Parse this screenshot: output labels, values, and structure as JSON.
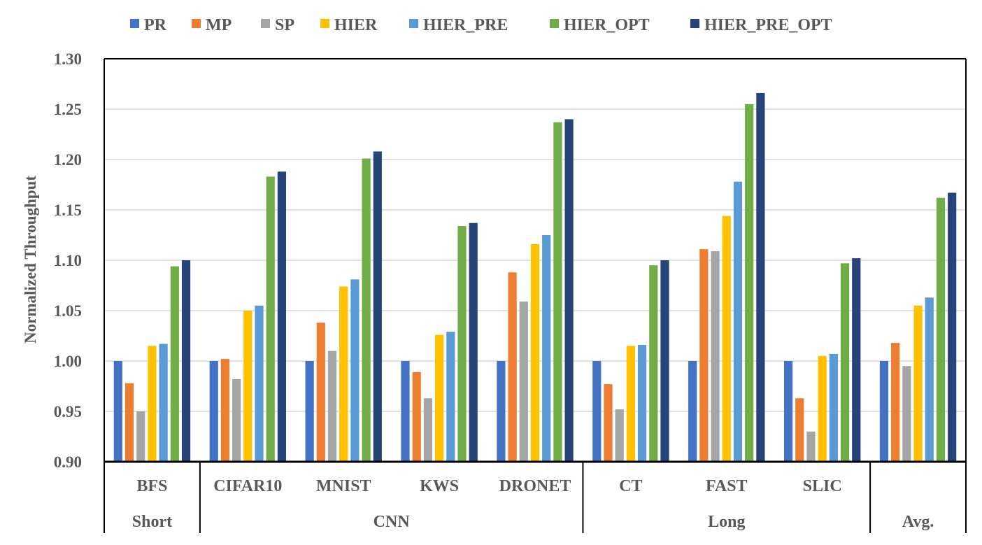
{
  "chart_data": {
    "type": "bar",
    "title": "",
    "xlabel": "",
    "ylabel": "Normalized Throughput",
    "ylim": [
      0.9,
      1.3
    ],
    "yticks": [
      "0.90",
      "0.95",
      "1.00",
      "1.05",
      "1.10",
      "1.15",
      "1.20",
      "1.25",
      "1.30"
    ],
    "baseline": 0.9,
    "grid": true,
    "legend_position": "top",
    "categories": [
      "BFS",
      "CIFAR10",
      "MNIST",
      "KWS",
      "DRONET",
      "CT",
      "FAST",
      "SLIC",
      ""
    ],
    "groups": [
      {
        "label": "Short",
        "start": 0,
        "end": 0
      },
      {
        "label": "CNN",
        "start": 1,
        "end": 4
      },
      {
        "label": "Long",
        "start": 5,
        "end": 7
      },
      {
        "label": "Avg.",
        "start": 8,
        "end": 8
      }
    ],
    "series": [
      {
        "name": "PR",
        "color": "#4472C4",
        "values": [
          1.0,
          1.0,
          1.0,
          1.0,
          1.0,
          1.0,
          1.0,
          1.0,
          1.0
        ]
      },
      {
        "name": "MP",
        "color": "#ED7D31",
        "values": [
          0.978,
          1.002,
          1.038,
          0.989,
          1.088,
          0.977,
          1.111,
          0.963,
          1.018
        ]
      },
      {
        "name": "SP",
        "color": "#A5A5A5",
        "values": [
          0.95,
          0.982,
          1.01,
          0.963,
          1.059,
          0.952,
          1.109,
          0.93,
          0.995
        ]
      },
      {
        "name": "HIER",
        "color": "#FFC000",
        "values": [
          1.015,
          1.05,
          1.074,
          1.026,
          1.116,
          1.015,
          1.144,
          1.005,
          1.055
        ]
      },
      {
        "name": "HIER_PRE",
        "color": "#5B9BD5",
        "values": [
          1.017,
          1.055,
          1.081,
          1.029,
          1.125,
          1.016,
          1.178,
          1.007,
          1.063
        ]
      },
      {
        "name": "HIER_OPT",
        "color": "#70AD47",
        "values": [
          1.094,
          1.183,
          1.201,
          1.134,
          1.237,
          1.095,
          1.255,
          1.097,
          1.162
        ]
      },
      {
        "name": "HIER_PRE_OPT",
        "color": "#264478",
        "values": [
          1.1,
          1.188,
          1.208,
          1.137,
          1.24,
          1.1,
          1.266,
          1.102,
          1.167
        ]
      }
    ]
  }
}
